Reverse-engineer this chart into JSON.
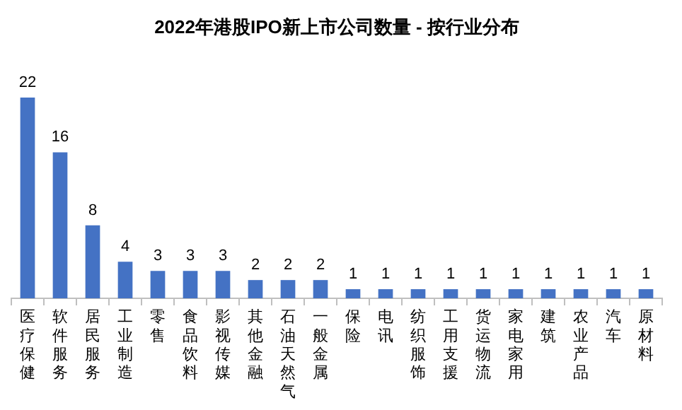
{
  "chart_data": {
    "type": "bar",
    "title": "2022年港股IPO新上市公司数量 - 按行业分布",
    "categories": [
      "医疗保健",
      "软件服务",
      "居民服务",
      "工业制造",
      "零售",
      "食品饮料",
      "影视传媒",
      "其他金融",
      "石油天然气",
      "一般金属",
      "保险",
      "电讯",
      "纺织服饰",
      "工用支援",
      "货运物流",
      "家电家用",
      "建筑",
      "农业产品",
      "汽车",
      "原材料"
    ],
    "values": [
      22,
      16,
      8,
      4,
      3,
      3,
      3,
      2,
      2,
      2,
      1,
      1,
      1,
      1,
      1,
      1,
      1,
      1,
      1,
      1
    ],
    "color": "#4472c4",
    "data_labels": true,
    "legend": false
  }
}
